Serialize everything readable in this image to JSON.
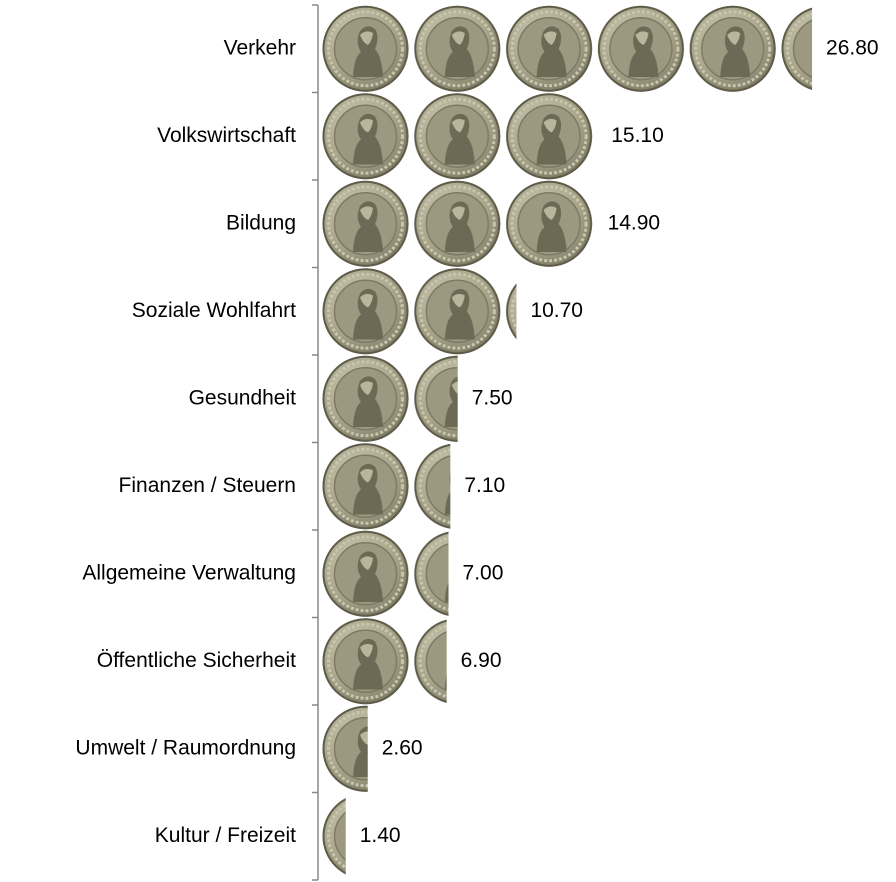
{
  "chart_data": {
    "type": "pictograph-bar",
    "categories": [
      "Verkehr",
      "Volkswirtschaft",
      "Bildung",
      "Soziale Wohlfahrt",
      "Gesundheit",
      "Finanzen / Steuern",
      "Allgemeine Verwaltung",
      "Öffentliche Sicherheit",
      "Umwelt / Raumordnung",
      "Kultur / Freizeit"
    ],
    "values": [
      26.8,
      15.1,
      14.9,
      10.7,
      7.5,
      7.1,
      7.0,
      6.9,
      2.6,
      1.4
    ],
    "value_labels": [
      "26.80",
      "15.10",
      "14.90",
      "10.70",
      "7.50",
      "7.10",
      "7.00",
      "6.90",
      "2.60",
      "1.40"
    ]
  }
}
